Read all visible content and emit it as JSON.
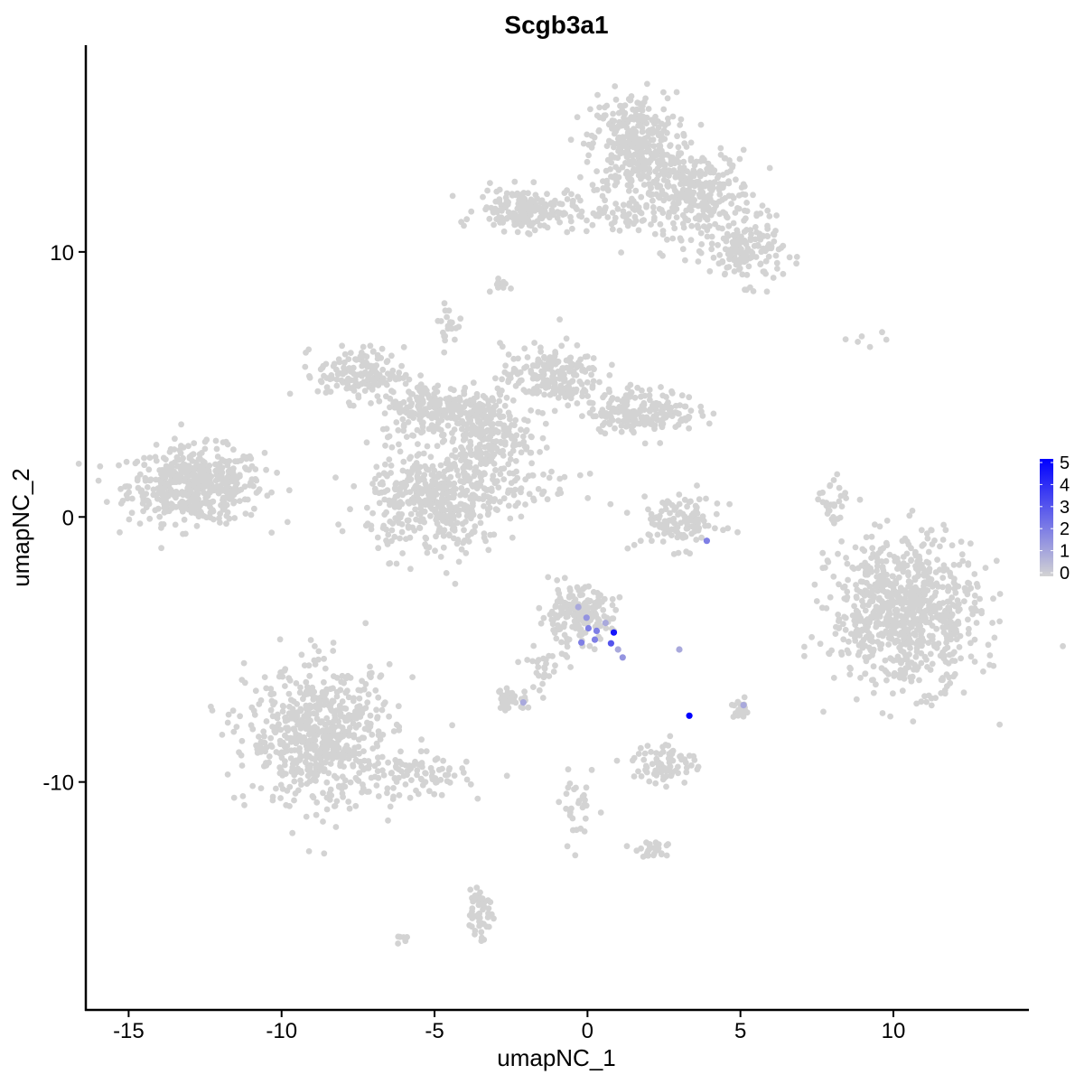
{
  "chart_data": {
    "type": "scatter",
    "title": "Scgb3a1",
    "xlabel": "umapNC_1",
    "ylabel": "umapNC_2",
    "xlim": [
      -16.4,
      14.4
    ],
    "ylim": [
      -18.6,
      17.8
    ],
    "x_ticks": [
      -15,
      -10,
      -5,
      0,
      5,
      10
    ],
    "x_tick_labels": [
      "-15",
      "-10",
      "-5",
      "0",
      "5",
      "10"
    ],
    "y_ticks": [
      -10,
      0,
      10
    ],
    "y_tick_labels": [
      "-10",
      "0",
      "10"
    ],
    "grid": false,
    "legend": {
      "type": "colorbar",
      "placement": "right",
      "ticks": [
        0,
        1,
        2,
        3,
        4,
        5
      ],
      "tick_labels": [
        "0",
        "1",
        "2",
        "3",
        "4",
        "5"
      ],
      "low_color": "#D3D3D3",
      "high_color": "#0000FF",
      "range": [
        0,
        5
      ]
    },
    "clusters": [
      {
        "cx": -12.8,
        "cy": 1.2,
        "sx": 1.1,
        "sy": 0.7,
        "n": 500
      },
      {
        "cx": 1.5,
        "cy": 14.0,
        "sx": 0.7,
        "sy": 1.0,
        "n": 350
      },
      {
        "cx": 3.6,
        "cy": 12.2,
        "sx": 0.9,
        "sy": 0.8,
        "n": 300
      },
      {
        "cx": 5.2,
        "cy": 10.0,
        "sx": 0.6,
        "sy": 0.6,
        "n": 150
      },
      {
        "cx": -2.0,
        "cy": 11.6,
        "sx": 0.8,
        "sy": 0.4,
        "n": 180
      },
      {
        "cx": 0.8,
        "cy": 11.3,
        "sx": 1.0,
        "sy": 0.3,
        "n": 60
      },
      {
        "cx": -2.9,
        "cy": 8.7,
        "sx": 0.15,
        "sy": 0.2,
        "n": 10
      },
      {
        "cx": -7.4,
        "cy": 5.4,
        "sx": 0.7,
        "sy": 0.5,
        "n": 150
      },
      {
        "cx": -5.0,
        "cy": 4.1,
        "sx": 0.9,
        "sy": 0.5,
        "n": 220
      },
      {
        "cx": -3.3,
        "cy": 3.0,
        "sx": 0.7,
        "sy": 0.9,
        "n": 250
      },
      {
        "cx": -1.2,
        "cy": 5.3,
        "sx": 0.8,
        "sy": 0.6,
        "n": 200
      },
      {
        "cx": 1.8,
        "cy": 4.0,
        "sx": 0.9,
        "sy": 0.4,
        "n": 200
      },
      {
        "cx": -5.0,
        "cy": 0.6,
        "sx": 1.1,
        "sy": 1.0,
        "n": 450
      },
      {
        "cx": -4.6,
        "cy": 7.3,
        "sx": 0.15,
        "sy": 0.3,
        "n": 20
      },
      {
        "cx": -1.8,
        "cy": 1.0,
        "sx": 0.8,
        "sy": 0.3,
        "n": 40
      },
      {
        "cx": 3.0,
        "cy": -0.2,
        "sx": 0.7,
        "sy": 0.5,
        "n": 120
      },
      {
        "cx": 8.0,
        "cy": 0.4,
        "sx": 0.2,
        "sy": 0.6,
        "n": 30
      },
      {
        "cx": 10.4,
        "cy": -3.6,
        "sx": 1.2,
        "sy": 1.4,
        "n": 800
      },
      {
        "cx": -0.4,
        "cy": -3.7,
        "sx": 0.6,
        "sy": 0.5,
        "n": 180
      },
      {
        "cx": -1.4,
        "cy": -5.6,
        "sx": 0.4,
        "sy": 0.5,
        "n": 30
      },
      {
        "cx": -8.7,
        "cy": -8.3,
        "sx": 1.2,
        "sy": 1.3,
        "n": 650
      },
      {
        "cx": -5.5,
        "cy": -9.8,
        "sx": 0.8,
        "sy": 0.4,
        "n": 80
      },
      {
        "cx": -2.5,
        "cy": -6.9,
        "sx": 0.3,
        "sy": 0.2,
        "n": 40
      },
      {
        "cx": 2.5,
        "cy": -9.3,
        "sx": 0.5,
        "sy": 0.4,
        "n": 80
      },
      {
        "cx": -3.5,
        "cy": -14.8,
        "sx": 0.2,
        "sy": 0.6,
        "n": 50
      },
      {
        "cx": 2.2,
        "cy": -12.6,
        "sx": 0.3,
        "sy": 0.15,
        "n": 25
      },
      {
        "cx": -0.3,
        "cy": -11.0,
        "sx": 0.3,
        "sy": 0.6,
        "n": 30
      },
      {
        "cx": 5.0,
        "cy": -7.3,
        "sx": 0.15,
        "sy": 0.2,
        "n": 20
      },
      {
        "cx": -6.0,
        "cy": -16.0,
        "sx": 0.1,
        "sy": 0.1,
        "n": 6
      },
      {
        "cx": 9.3,
        "cy": 6.7,
        "sx": 0.8,
        "sy": 0.2,
        "n": 6
      }
    ],
    "expressing_points": [
      {
        "x": 0.86,
        "y": -4.36,
        "value": 4.5
      },
      {
        "x": 0.77,
        "y": -4.77,
        "value": 3
      },
      {
        "x": -0.2,
        "y": -4.74,
        "value": 2
      },
      {
        "x": 0.24,
        "y": -4.63,
        "value": 2
      },
      {
        "x": 0.03,
        "y": -4.2,
        "value": 2
      },
      {
        "x": 0.3,
        "y": -4.3,
        "value": 2
      },
      {
        "x": -0.03,
        "y": -3.8,
        "value": 1.5
      },
      {
        "x": -0.3,
        "y": -3.4,
        "value": 1
      },
      {
        "x": 0.59,
        "y": -4.0,
        "value": 1
      },
      {
        "x": 1.15,
        "y": -5.3,
        "value": 1.5
      },
      {
        "x": 1.0,
        "y": -5.0,
        "value": 1
      },
      {
        "x": 3.0,
        "y": -5.0,
        "value": 1
      },
      {
        "x": 3.9,
        "y": -0.9,
        "value": 2
      },
      {
        "x": 5.1,
        "y": -7.1,
        "value": 1
      },
      {
        "x": -2.1,
        "y": -7.0,
        "value": 1
      },
      {
        "x": 3.33,
        "y": -7.5,
        "value": 5
      }
    ]
  }
}
